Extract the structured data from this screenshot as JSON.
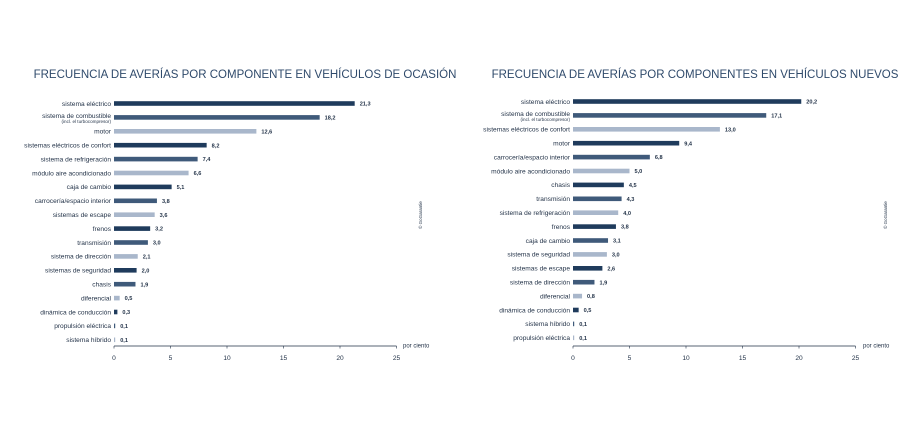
{
  "colors": {
    "dark": "#1f3b5c",
    "mid": "#3f5a7a",
    "light": "#a9b7cb",
    "axis": "#1f2f45"
  },
  "chart_data": [
    {
      "type": "bar",
      "orientation": "horizontal",
      "title": "FRECUENCIA DE AVERÍAS POR COMPONENTE EN VEHÍCULOS DE OCASIÓN",
      "unit_label": "por ciento",
      "credit": "© GoGarantie",
      "xlim": [
        0,
        25
      ],
      "xticks": [
        "0",
        "5",
        "10",
        "15",
        "20",
        "25"
      ],
      "categories": [
        "sistema eléctrico",
        "sistema de combustible",
        "motor",
        "sistemas eléctricos de confort",
        "sistema de refrigeración",
        "módulo aire acondicionado",
        "caja de cambio",
        "carrocería/espacio interior",
        "sistemas de escape",
        "frenos",
        "transmisión",
        "sistema de dirección",
        "sistemas de seguridad",
        "chasis",
        "diferencial",
        "dinámica de conducción",
        "propulsión eléctrica",
        "sistema híbrido"
      ],
      "sublabels": [
        "",
        "(incl. el turbocompresor)",
        "",
        "",
        "",
        "",
        "",
        "",
        "",
        "",
        "",
        "",
        "",
        "",
        "",
        "",
        "",
        ""
      ],
      "values": [
        21.3,
        18.2,
        12.6,
        8.2,
        7.4,
        6.6,
        5.1,
        3.8,
        3.6,
        3.2,
        3.0,
        2.1,
        2.0,
        1.9,
        0.5,
        0.3,
        0.1,
        0.1
      ],
      "value_labels": [
        "21,3",
        "18,2",
        "12,6",
        "8,2",
        "7,4",
        "6,6",
        "5,1",
        "3,8",
        "3,6",
        "3,2",
        "3,0",
        "2,1",
        "2,0",
        "1,9",
        "0,5",
        "0,3",
        "0,1",
        "0,1"
      ],
      "shades": [
        "dark",
        "mid",
        "light",
        "dark",
        "mid",
        "light",
        "dark",
        "mid",
        "light",
        "dark",
        "mid",
        "light",
        "dark",
        "mid",
        "light",
        "dark",
        "mid",
        "light"
      ]
    },
    {
      "type": "bar",
      "orientation": "horizontal",
      "title": "FRECUENCIA DE AVERÍAS POR COMPONENTES EN VEHÍCULOS NUEVOS",
      "unit_label": "por ciento",
      "credit": "© GoGarantie",
      "xlim": [
        0,
        25
      ],
      "xticks": [
        "0",
        "5",
        "10",
        "15",
        "20",
        "25"
      ],
      "categories": [
        "sistema eléctrico",
        "sistema de combustible",
        "sistemas eléctricos de confort",
        "motor",
        "carrocería/espacio interior",
        "módulo aire acondicionado",
        "chasis",
        "transmisión",
        "sistema de refrigeración",
        "frenos",
        "caja de cambio",
        "sistema de seguridad",
        "sistemas de escape",
        "sistema de dirección",
        "diferencial",
        "dinámica de conducción",
        "sistema híbrido",
        "propulsión eléctrica"
      ],
      "sublabels": [
        "",
        "(incl. el turbocompresor)",
        "",
        "",
        "",
        "",
        "",
        "",
        "",
        "",
        "",
        "",
        "",
        "",
        "",
        "",
        "",
        ""
      ],
      "values": [
        20.2,
        17.1,
        13.0,
        9.4,
        6.8,
        5.0,
        4.5,
        4.3,
        4.0,
        3.8,
        3.1,
        3.0,
        2.6,
        1.9,
        0.8,
        0.5,
        0.1,
        0.1
      ],
      "value_labels": [
        "20,2",
        "17,1",
        "13,0",
        "9,4",
        "6,8",
        "5,0",
        "4,5",
        "4,3",
        "4,0",
        "3,8",
        "3,1",
        "3,0",
        "2,6",
        "1,9",
        "0,8",
        "0,5",
        "0,1",
        "0,1"
      ],
      "shades": [
        "dark",
        "mid",
        "light",
        "dark",
        "mid",
        "light",
        "dark",
        "mid",
        "light",
        "dark",
        "mid",
        "light",
        "dark",
        "mid",
        "light",
        "dark",
        "mid",
        "light"
      ]
    }
  ]
}
